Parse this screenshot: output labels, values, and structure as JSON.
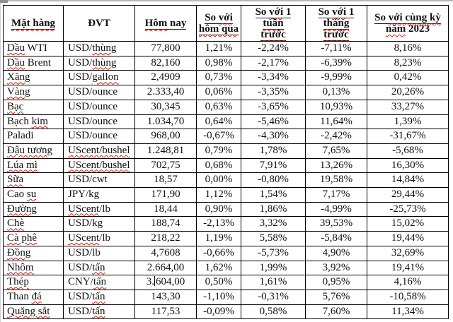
{
  "document": {
    "colors": {
      "spellcheck_wavy": "#cc2211",
      "header_underline": "#1c1c1c",
      "table_border": "#000000",
      "text": "#101010",
      "page_bg": "#ffffff"
    },
    "table": {
      "columns": [
        {
          "id": "mat-hang",
          "label": "Mặt hàng",
          "lines": [
            [
              {
                "t": "Mặt hàng",
                "u": 1,
                "w": 1
              }
            ]
          ]
        },
        {
          "id": "dvt",
          "label": "ĐVT",
          "lines": [
            [
              {
                "t": "ĐVT"
              }
            ]
          ]
        },
        {
          "id": "hom-nay",
          "label": "Hôm nay",
          "lines": [
            [
              {
                "t": "Hôm",
                "u": 1,
                "w": 1
              },
              {
                "t": " nay",
                "u": 1
              }
            ]
          ]
        },
        {
          "id": "so-voi-hom-qua",
          "label": "So với hôm qua",
          "lines": [
            [
              {
                "t": "So ",
                "u": 1
              },
              {
                "t": "với",
                "u": 1,
                "w": 1
              }
            ],
            [
              {
                "t": "hôm qua",
                "u": 1,
                "w": 1
              }
            ]
          ]
        },
        {
          "id": "so-voi-1-tuan-truoc",
          "label": "So với 1 tuần trước",
          "lines": [
            [
              {
                "t": "So ",
                "u": 1
              },
              {
                "t": "với",
                "u": 1,
                "w": 1
              },
              {
                "t": " 1",
                "u": 1
              }
            ],
            [
              {
                "t": "tuần",
                "u": 1,
                "w": 1
              }
            ],
            [
              {
                "t": "trước",
                "u": 1,
                "w": 1
              }
            ]
          ]
        },
        {
          "id": "so-voi-1-thang-truoc",
          "label": "So với 1 tháng trước",
          "lines": [
            [
              {
                "t": "So ",
                "u": 1
              },
              {
                "t": "với",
                "u": 1,
                "w": 1
              },
              {
                "t": " 1",
                "u": 1
              }
            ],
            [
              {
                "t": "tháng",
                "u": 1,
                "w": 1
              }
            ],
            [
              {
                "t": "trước",
                "u": 1,
                "w": 1
              }
            ]
          ]
        },
        {
          "id": "so-voi-cung-ky-nam-2023",
          "label": "So với cùng kỳ năm 2023",
          "lines": [
            [
              {
                "t": "So ",
                "u": 1
              },
              {
                "t": "với cùng kỳ",
                "u": 1,
                "w": 1
              }
            ],
            [
              {
                "t": "năm",
                "w": 1
              },
              {
                "t": " 2023"
              }
            ]
          ]
        }
      ],
      "rows": [
        {
          "name": [
            {
              "t": "Dầu",
              "w": 1
            },
            {
              "t": " WTI"
            }
          ],
          "unit": [
            {
              "t": "USD/"
            },
            {
              "t": "thùng",
              "w": 1
            }
          ],
          "today": "77,800",
          "vs_yesterday": "1,21%",
          "vs_week": "-2,24%",
          "vs_month": "-7,11%",
          "vs_2023": "8,16%"
        },
        {
          "name": [
            {
              "t": "Dầu",
              "w": 1
            },
            {
              "t": " Brent"
            }
          ],
          "unit": [
            {
              "t": "USD/"
            },
            {
              "t": "thùng",
              "w": 1
            }
          ],
          "today": "82,160",
          "vs_yesterday": "0,98%",
          "vs_week": "-2,17%",
          "vs_month": "-6,39%",
          "vs_2023": "8,23%"
        },
        {
          "name": [
            {
              "t": "Xăng",
              "w": 1
            }
          ],
          "unit": [
            {
              "t": "USD/"
            },
            {
              "t": "gallon",
              "w": 1
            }
          ],
          "today": "2,4909",
          "vs_yesterday": "0,73%",
          "vs_week": "-3,34%",
          "vs_month": "-9,99%",
          "vs_2023": "0,42%"
        },
        {
          "name": [
            {
              "t": "Vàng",
              "w": 1
            }
          ],
          "unit": [
            {
              "t": "USD/ounce"
            }
          ],
          "today": "2.333,40",
          "vs_yesterday": "0,06%",
          "vs_week": "-3,35%",
          "vs_month": "0,13%",
          "vs_2023": "20,26%"
        },
        {
          "name": [
            {
              "t": "Bạc",
              "w": 1
            }
          ],
          "unit": [
            {
              "t": "USD/ounce"
            }
          ],
          "today": "30,345",
          "vs_yesterday": "0,63%",
          "vs_week": "-3,65%",
          "vs_month": "10,93%",
          "vs_2023": "33,27%"
        },
        {
          "name": [
            {
              "t": "Bạch "
            },
            {
              "t": "kim",
              "w": 1
            }
          ],
          "unit": [
            {
              "t": "USD/ounce"
            }
          ],
          "today": "1.034,70",
          "vs_yesterday": "0,64%",
          "vs_week": "-5,46%",
          "vs_month": "11,64%",
          "vs_2023": "1,39%"
        },
        {
          "name": [
            {
              "t": "Paladi"
            }
          ],
          "unit": [
            {
              "t": "USD/ounce"
            }
          ],
          "today": "968,00",
          "vs_yesterday": "-0,67%",
          "vs_week": "-4,30%",
          "vs_month": "-2,42%",
          "vs_2023": "-31,67%"
        },
        {
          "name": [
            {
              "t": "Đậu tương",
              "w": 1
            }
          ],
          "unit": [
            {
              "t": "UScent/bushel",
              "w": 1
            }
          ],
          "today": "1.248,81",
          "vs_yesterday": "0,79%",
          "vs_week": "1,78%",
          "vs_month": "7,65%",
          "vs_2023": "-5,68%"
        },
        {
          "name": [
            {
              "t": "Lúa mì",
              "w": 1
            }
          ],
          "unit": [
            {
              "t": "UScent/bushel",
              "w": 1
            }
          ],
          "today": "702,75",
          "vs_yesterday": "0,68%",
          "vs_week": "7,91%",
          "vs_month": "13,26%",
          "vs_2023": "16,30%"
        },
        {
          "name": [
            {
              "t": "Sữa",
              "w": 1
            }
          ],
          "unit": [
            {
              "t": "USD/cwt"
            }
          ],
          "today": "18,57",
          "vs_yesterday": "0,00%",
          "vs_week": "-0,80%",
          "vs_month": "19,58%",
          "vs_2023": "14,84%"
        },
        {
          "name": [
            {
              "t": "Cao "
            },
            {
              "t": "su",
              "w": 1
            }
          ],
          "unit": [
            {
              "t": "JPY/kg"
            }
          ],
          "today": "171,90",
          "vs_yesterday": "1,12%",
          "vs_week": "1,54%",
          "vs_month": "7,17%",
          "vs_2023": "29,44%"
        },
        {
          "name": [
            {
              "t": "Đường",
              "w": 1
            }
          ],
          "unit": [
            {
              "t": "UScent",
              "w": 1
            },
            {
              "t": "/lb"
            }
          ],
          "today": "18,44",
          "vs_yesterday": "0,90%",
          "vs_week": "1,86%",
          "vs_month": "-4,99%",
          "vs_2023": "-25,73%"
        },
        {
          "name": [
            {
              "t": "Chè",
              "w": 1
            }
          ],
          "unit": [
            {
              "t": "USD/kg"
            }
          ],
          "today": "188,74",
          "vs_yesterday": "-2,13%",
          "vs_week": "3,32%",
          "vs_month": "39,53%",
          "vs_2023": "15,02%"
        },
        {
          "name": [
            {
              "t": "Cà phê",
              "w": 1
            }
          ],
          "unit": [
            {
              "t": "UScent",
              "w": 1
            },
            {
              "t": "/lb"
            }
          ],
          "today": "218,22",
          "vs_yesterday": "1,19%",
          "vs_week": "5,58%",
          "vs_month": "-5,84%",
          "vs_2023": "19,44%"
        },
        {
          "name": [
            {
              "t": "Đồng",
              "w": 1
            }
          ],
          "unit": [
            {
              "t": "USD/lb"
            }
          ],
          "today": "4,7608",
          "vs_yesterday": "-0,66%",
          "vs_week": "-5,73%",
          "vs_month": "4,90%",
          "vs_2023": "32,69%"
        },
        {
          "name": [
            {
              "t": "Nhôm",
              "w": 1
            }
          ],
          "unit": [
            {
              "t": "USD/"
            },
            {
              "t": "tấn",
              "w": 1
            }
          ],
          "today": "2.664,00",
          "vs_yesterday": "1,62%",
          "vs_week": "1,99%",
          "vs_month": "3,92%",
          "vs_2023": "19,41%"
        },
        {
          "name": [
            {
              "t": "Thép",
              "w": 1
            }
          ],
          "unit": [
            {
              "t": "CNY/"
            },
            {
              "t": "tấn",
              "w": 1
            }
          ],
          "today": [
            {
              "t": "3."
            },
            {
              "caret": 1
            },
            {
              "t": "604,00"
            }
          ],
          "vs_yesterday": "0,50%",
          "vs_week": "1,61%",
          "vs_month": "0,95%",
          "vs_2023": "4,16%"
        },
        {
          "name": [
            {
              "t": "Than "
            },
            {
              "t": "đá",
              "w": 1
            }
          ],
          "unit": [
            {
              "t": "USD/"
            },
            {
              "t": "tấn",
              "w": 1
            }
          ],
          "today": "143,30",
          "vs_yesterday": "-1,10%",
          "vs_week": "-0,31%",
          "vs_month": "5,76%",
          "vs_2023": "-10,58%"
        },
        {
          "name": [
            {
              "t": "Quặng sắt",
              "w": 1
            }
          ],
          "unit": [
            {
              "t": "USD/"
            },
            {
              "t": "tấn",
              "w": 1
            }
          ],
          "today": "117,53",
          "vs_yesterday": "-0,09%",
          "vs_week": "0,58%",
          "vs_month": "7,60%",
          "vs_2023": "11,34%"
        }
      ]
    }
  }
}
